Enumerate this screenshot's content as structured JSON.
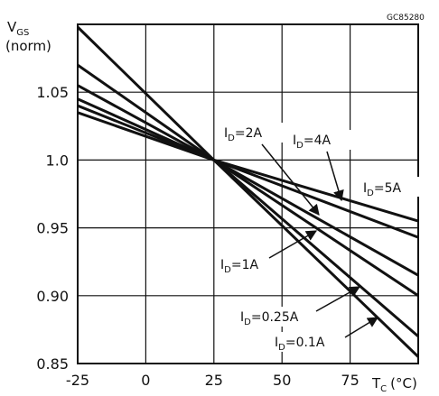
{
  "chart_data": {
    "type": "line",
    "code": "GC85280",
    "ylabel": {
      "main": "V",
      "sub": "GS",
      "line2": "(norm)"
    },
    "xlabel": {
      "main": "T",
      "sub": "C",
      "unit": "(°C)"
    },
    "xlim": [
      -25,
      100
    ],
    "ylim": [
      0.85,
      1.1
    ],
    "xticks": [
      "-25",
      "0",
      "25",
      "50",
      "75"
    ],
    "xtick_values": [
      -25,
      0,
      25,
      50,
      75
    ],
    "yticks": [
      "0.85",
      "0.90",
      "0.95",
      "1.0",
      "1.05"
    ],
    "ytick_values": [
      0.85,
      0.9,
      0.95,
      1.0,
      1.05
    ],
    "grid": true,
    "series": [
      {
        "name": "ID=0.1A",
        "x": [
          -25,
          25,
          100
        ],
        "y": [
          1.098,
          1.0,
          0.855
        ]
      },
      {
        "name": "ID=0.25A",
        "x": [
          -25,
          25,
          100
        ],
        "y": [
          1.07,
          1.0,
          0.87
        ]
      },
      {
        "name": "ID=1A",
        "x": [
          -25,
          25,
          100
        ],
        "y": [
          1.055,
          1.0,
          0.9
        ]
      },
      {
        "name": "ID=2A",
        "x": [
          -25,
          25,
          100
        ],
        "y": [
          1.045,
          1.0,
          0.915
        ]
      },
      {
        "name": "ID=4A",
        "x": [
          -25,
          25,
          100
        ],
        "y": [
          1.04,
          1.0,
          0.943
        ]
      },
      {
        "name": "ID=5A",
        "x": [
          -25,
          25,
          100
        ],
        "y": [
          1.035,
          1.0,
          0.955
        ]
      }
    ],
    "annotations": [
      {
        "main": "I",
        "sub": "D",
        "text": "=2A"
      },
      {
        "main": "I",
        "sub": "D",
        "text": "=4A"
      },
      {
        "main": "I",
        "sub": "D",
        "text": "=5A"
      },
      {
        "main": "I",
        "sub": "D",
        "text": "=1A"
      },
      {
        "main": "I",
        "sub": "D",
        "text": "=0.25A"
      },
      {
        "main": "I",
        "sub": "D",
        "text": "=0.1A"
      }
    ]
  }
}
